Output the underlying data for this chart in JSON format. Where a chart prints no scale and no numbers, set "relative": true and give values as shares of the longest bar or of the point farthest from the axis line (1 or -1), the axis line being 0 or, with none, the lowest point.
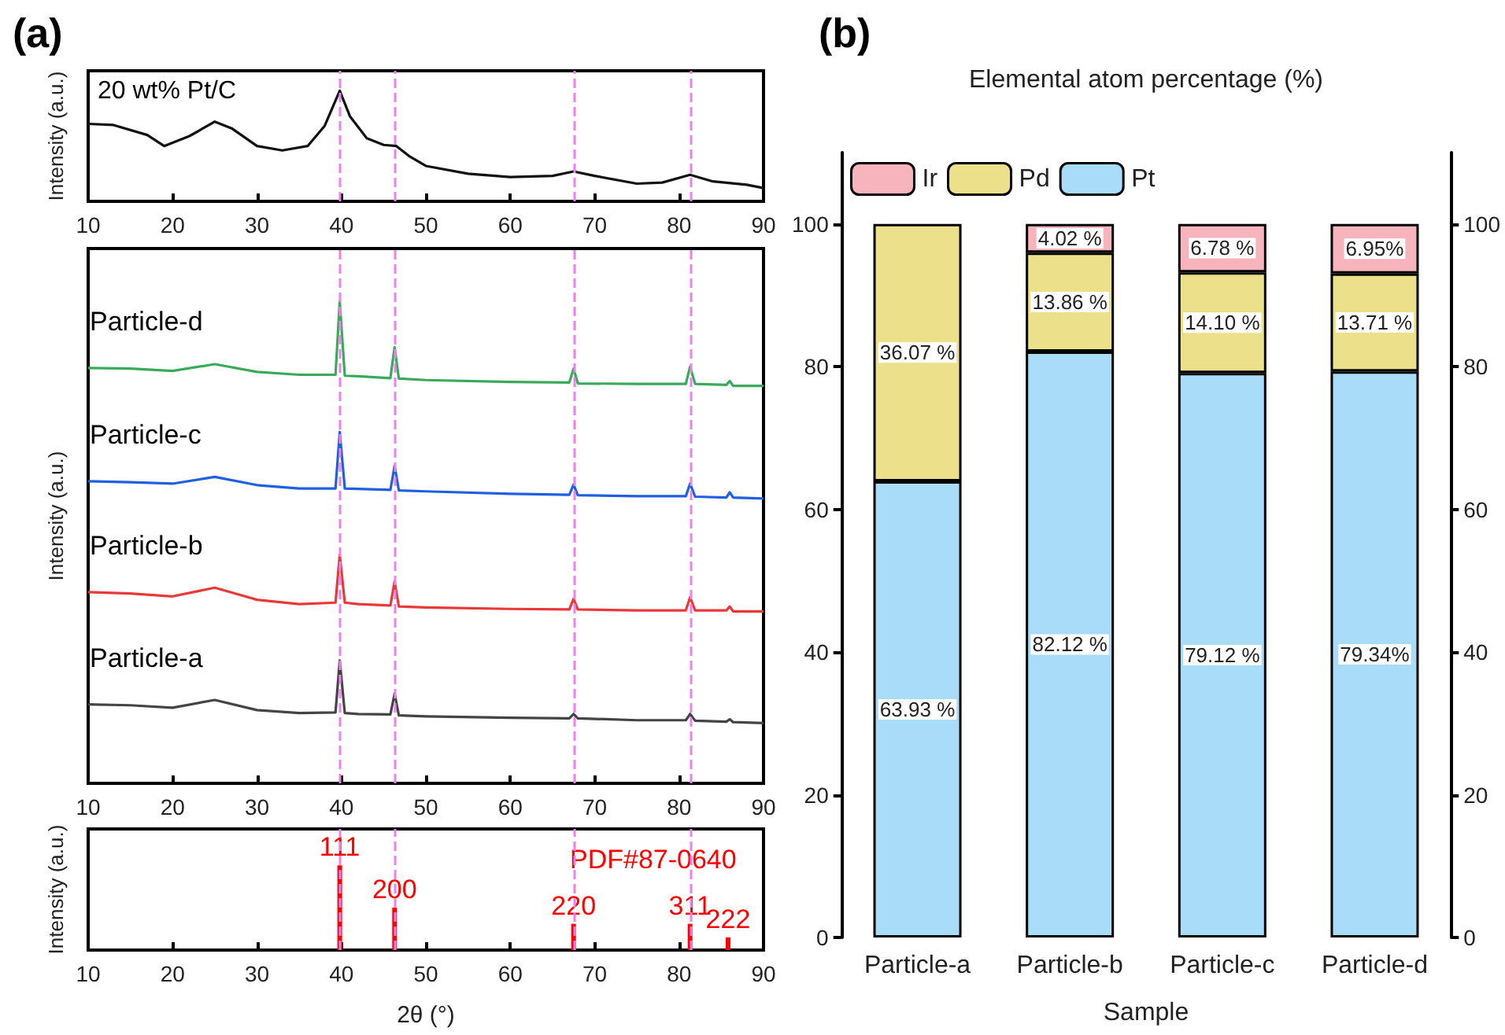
{
  "chart_data": [
    {
      "type": "line",
      "ylabel": "Intensity (a.u.)",
      "relative": true,
      "annotations": [
        "(a)",
        "20 wt% Pt/C"
      ],
      "xlim": [
        10,
        90
      ],
      "xticks": [
        10,
        20,
        30,
        40,
        50,
        60,
        70,
        80,
        90
      ],
      "x": [
        10,
        13,
        17,
        19,
        22,
        25,
        27,
        30,
        33,
        36,
        38,
        39.8,
        41,
        43,
        45,
        46.5,
        48,
        50,
        55,
        60,
        65,
        67.5,
        70,
        75,
        78,
        81.3,
        84,
        88,
        90
      ],
      "series": [
        {
          "color": "#111111",
          "values": [
            0.7,
            0.69,
            0.6,
            0.5,
            0.59,
            0.72,
            0.66,
            0.5,
            0.46,
            0.5,
            0.68,
            1.0,
            0.77,
            0.57,
            0.51,
            0.5,
            0.41,
            0.32,
            0.25,
            0.22,
            0.23,
            0.27,
            0.23,
            0.16,
            0.17,
            0.24,
            0.18,
            0.15,
            0.12
          ]
        }
      ],
      "ref_lines": [
        {
          "axis": "x",
          "value": 39.8,
          "color": "#f080f0",
          "line_style": "dashed"
        },
        {
          "axis": "x",
          "value": 46.3,
          "color": "#f080f0",
          "line_style": "dashed"
        },
        {
          "axis": "x",
          "value": 67.5,
          "color": "#f080f0",
          "line_style": "dashed"
        },
        {
          "axis": "x",
          "value": 81.3,
          "color": "#f080f0",
          "line_style": "dashed"
        }
      ]
    },
    {
      "type": "line",
      "ylabel": "Intensity (a.u.)",
      "relative": true,
      "xlim": [
        10,
        90
      ],
      "xticks": [
        10,
        20,
        30,
        40,
        50,
        60,
        70,
        80,
        90
      ],
      "x": [
        10,
        15,
        20,
        25,
        30,
        35,
        39.3,
        39.8,
        40.4,
        42,
        45.8,
        46.3,
        46.8,
        50,
        60,
        67,
        67.5,
        68,
        75,
        80.8,
        81.3,
        81.9,
        85.6,
        86,
        86.4,
        90
      ],
      "series": [
        {
          "name": "Particle-d",
          "color": "#3aaa5a",
          "values": [
            0.862,
            0.861,
            0.856,
            0.87,
            0.854,
            0.848,
            0.848,
            1.0,
            0.846,
            0.845,
            0.841,
            0.905,
            0.84,
            0.837,
            0.833,
            0.832,
            0.861,
            0.83,
            0.829,
            0.829,
            0.865,
            0.829,
            0.827,
            0.835,
            0.825,
            0.825
          ]
        },
        {
          "name": "Particle-c",
          "color": "#2060e0",
          "values": [
            0.627,
            0.625,
            0.622,
            0.636,
            0.619,
            0.612,
            0.612,
            0.729,
            0.612,
            0.611,
            0.609,
            0.659,
            0.608,
            0.606,
            0.601,
            0.599,
            0.62,
            0.598,
            0.596,
            0.596,
            0.622,
            0.595,
            0.593,
            0.604,
            0.593,
            0.591
          ]
        },
        {
          "name": "Particle-b",
          "color": "#e83838",
          "values": [
            0.397,
            0.394,
            0.388,
            0.406,
            0.381,
            0.372,
            0.375,
            0.474,
            0.375,
            0.372,
            0.369,
            0.419,
            0.367,
            0.365,
            0.362,
            0.361,
            0.383,
            0.361,
            0.359,
            0.359,
            0.386,
            0.359,
            0.359,
            0.367,
            0.357,
            0.357
          ]
        },
        {
          "name": "Particle-a",
          "color": "#444444",
          "values": [
            0.164,
            0.162,
            0.157,
            0.173,
            0.152,
            0.146,
            0.147,
            0.255,
            0.146,
            0.144,
            0.143,
            0.186,
            0.141,
            0.139,
            0.136,
            0.135,
            0.144,
            0.135,
            0.131,
            0.131,
            0.144,
            0.13,
            0.128,
            0.133,
            0.127,
            0.125
          ]
        }
      ],
      "ref_lines": [
        {
          "axis": "x",
          "value": 39.8,
          "color": "#f080f0",
          "line_style": "dashed"
        },
        {
          "axis": "x",
          "value": 46.3,
          "color": "#f080f0",
          "line_style": "dashed"
        },
        {
          "axis": "x",
          "value": 67.5,
          "color": "#f080f0",
          "line_style": "dashed"
        },
        {
          "axis": "x",
          "value": 81.3,
          "color": "#f080f0",
          "line_style": "dashed"
        }
      ]
    },
    {
      "type": "bar",
      "ylabel": "Intensity (a.u.)",
      "xlabel": "2θ (°)",
      "relative": true,
      "annotations": [
        "PDF#87-0640",
        {
          "text": "111",
          "x": 39.8,
          "y": 1.0
        },
        {
          "text": "200",
          "x": 46.3,
          "y": 0.5
        },
        {
          "text": "220",
          "x": 67.5,
          "y": 0.31
        },
        {
          "text": "311",
          "x": 81.3,
          "y": 0.31
        },
        {
          "text": "222",
          "x": 85.8,
          "y": 0.15
        }
      ],
      "xlim": [
        10,
        90
      ],
      "xticks": [
        10,
        20,
        30,
        40,
        50,
        60,
        70,
        80,
        90
      ],
      "x": [
        39.8,
        46.3,
        67.5,
        81.3,
        85.8
      ],
      "values": [
        1.0,
        0.5,
        0.31,
        0.31,
        0.15
      ],
      "color": "#ff0000",
      "ref_lines": [
        {
          "axis": "x",
          "value": 39.8,
          "color": "#f080f0",
          "line_style": "dashed"
        },
        {
          "axis": "x",
          "value": 46.3,
          "color": "#f080f0",
          "line_style": "dashed"
        },
        {
          "axis": "x",
          "value": 67.5,
          "color": "#f080f0",
          "line_style": "dashed"
        },
        {
          "axis": "x",
          "value": 81.3,
          "color": "#f080f0",
          "line_style": "dashed"
        }
      ]
    },
    {
      "type": "bar",
      "title": "Elemental atom percentage (%)",
      "xlabel": "Sample",
      "annotations": [
        "(b)"
      ],
      "stacked": true,
      "legend": "top left",
      "categories": [
        "Particle-a",
        "Particle-b",
        "Particle-c",
        "Particle-d"
      ],
      "ylim": [
        0,
        110
      ],
      "yticks": [
        0,
        20,
        40,
        60,
        80,
        100
      ],
      "y2lim": [
        0,
        110
      ],
      "y2ticks": [
        0,
        20,
        40,
        60,
        80,
        100
      ],
      "series": [
        {
          "name": "Pt",
          "color": "#a8dcf8",
          "values": [
            63.93,
            82.12,
            79.12,
            79.34
          ],
          "value_labels": [
            "63.93 %",
            "82.12 %",
            "79.12 %",
            "79.34%"
          ]
        },
        {
          "name": "Pd",
          "color": "#ece08a",
          "values": [
            36.07,
            13.86,
            14.1,
            13.71
          ],
          "value_labels": [
            "36.07 %",
            "13.86 %",
            "14.10 %",
            "13.71 %"
          ]
        },
        {
          "name": "Ir",
          "color": "#f8b4bc",
          "values": [
            null,
            4.02,
            6.78,
            6.95
          ],
          "value_labels": [
            null,
            "4.02 %",
            "6.78 %",
            "6.95%"
          ]
        }
      ]
    }
  ]
}
